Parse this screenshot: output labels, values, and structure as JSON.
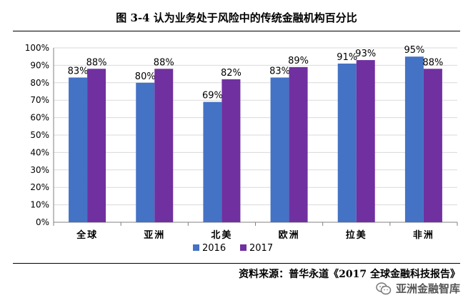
{
  "title": "图 3-4   认为业务处于风险中的传统金融机构百分比",
  "source": "资料来源：普华永道《2017 全球金融科技报告》",
  "watermark": "亚洲金融智库",
  "colors": {
    "series_2016": "#4472C4",
    "series_2017": "#7030A0",
    "grid": "#d9d9d9",
    "axis": "#808080"
  },
  "chart_data": {
    "type": "bar",
    "title": "图 3-4   认为业务处于风险中的传统金融机构百分比",
    "xlabel": "",
    "ylabel": "",
    "categories": [
      "全球",
      "亚洲",
      "北美",
      "欧洲",
      "拉美",
      "非洲"
    ],
    "series": [
      {
        "name": "2016",
        "values": [
          83,
          80,
          69,
          83,
          91,
          95
        ],
        "labels": [
          "83%",
          "80%",
          "69%",
          "83%",
          "91%",
          "95%"
        ]
      },
      {
        "name": "2017",
        "values": [
          88,
          88,
          82,
          89,
          93,
          88
        ],
        "labels": [
          "88%",
          "88%",
          "82%",
          "89%",
          "93%",
          "88%"
        ]
      }
    ],
    "ylim": [
      0,
      100
    ],
    "yticks": [
      0,
      10,
      20,
      30,
      40,
      50,
      60,
      70,
      80,
      90,
      100
    ],
    "ytick_labels": [
      "0%",
      "10%",
      "20%",
      "30%",
      "40%",
      "50%",
      "60%",
      "70%",
      "80%",
      "90%",
      "100%"
    ],
    "grid": true,
    "legend_position": "bottom"
  }
}
